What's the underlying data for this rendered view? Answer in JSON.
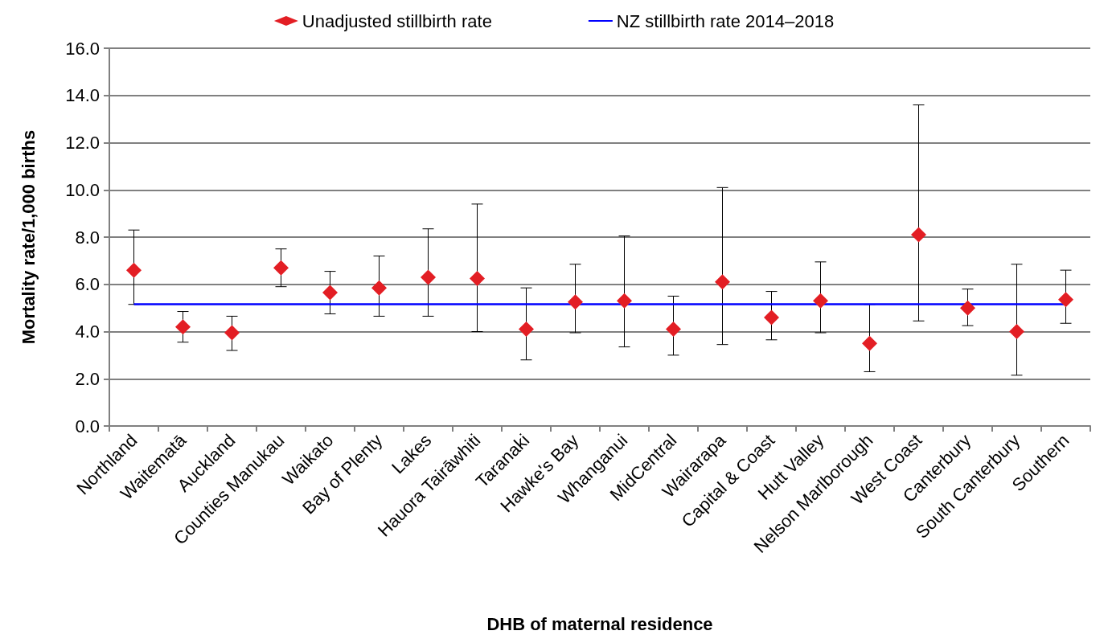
{
  "chart_data": {
    "type": "scatter",
    "xlabel": "DHB of maternal residence",
    "ylabel": "Mortality rate/1,000 births",
    "categories": [
      "Northland",
      "Waitematā",
      "Auckland",
      "Counties Manukau",
      "Waikato",
      "Bay of Plenty",
      "Lakes",
      "Hauora Tairāwhiti",
      "Taranaki",
      "Hawke's Bay",
      "Whanganui",
      "MidCentral",
      "Wairarapa",
      "Capital & Coast",
      "Hutt Valley",
      "Nelson Marlborough",
      "West Coast",
      "Canterbury",
      "South Canterbury",
      "Southern"
    ],
    "series": [
      {
        "name": "Unadjusted stillbirth rate",
        "color": "#e31e24",
        "marker": "diamond",
        "values": [
          6.6,
          4.2,
          3.95,
          6.7,
          5.65,
          5.85,
          6.3,
          6.25,
          4.1,
          5.25,
          5.3,
          4.1,
          6.1,
          4.6,
          5.3,
          3.5,
          8.1,
          5.0,
          4.0,
          5.35
        ],
        "errors": [
          [
            5.15,
            8.3
          ],
          [
            3.55,
            4.85
          ],
          [
            3.2,
            4.65
          ],
          [
            5.9,
            7.5
          ],
          [
            4.75,
            6.55
          ],
          [
            4.65,
            7.2
          ],
          [
            4.65,
            8.35
          ],
          [
            4.0,
            9.4
          ],
          [
            2.8,
            5.85
          ],
          [
            3.95,
            6.85
          ],
          [
            3.35,
            8.05
          ],
          [
            3.0,
            5.5
          ],
          [
            3.45,
            10.1
          ],
          [
            3.65,
            5.7
          ],
          [
            3.95,
            6.95
          ],
          [
            2.3,
            5.15
          ],
          [
            4.45,
            13.6
          ],
          [
            4.25,
            5.8
          ],
          [
            2.15,
            6.85
          ],
          [
            4.35,
            6.6
          ]
        ]
      }
    ],
    "ref_lines": [
      {
        "axis": "y",
        "value": 5.15,
        "label": "NZ stillbirth rate 2014–2018",
        "color": "#0000ff",
        "line_style": "solid"
      }
    ],
    "ylim": [
      0,
      16
    ],
    "yticks": [
      {
        "value": 0,
        "label": "0.0"
      },
      {
        "value": 2,
        "label": "2.0"
      },
      {
        "value": 4,
        "label": "4.0"
      },
      {
        "value": 6,
        "label": "6.0"
      },
      {
        "value": 8,
        "label": "8.0"
      },
      {
        "value": 10,
        "label": "10.0"
      },
      {
        "value": 12,
        "label": "12.0"
      },
      {
        "value": 14,
        "label": "14.0"
      },
      {
        "value": 16,
        "label": "16.0"
      }
    ],
    "grid": "y",
    "legend": "top"
  }
}
